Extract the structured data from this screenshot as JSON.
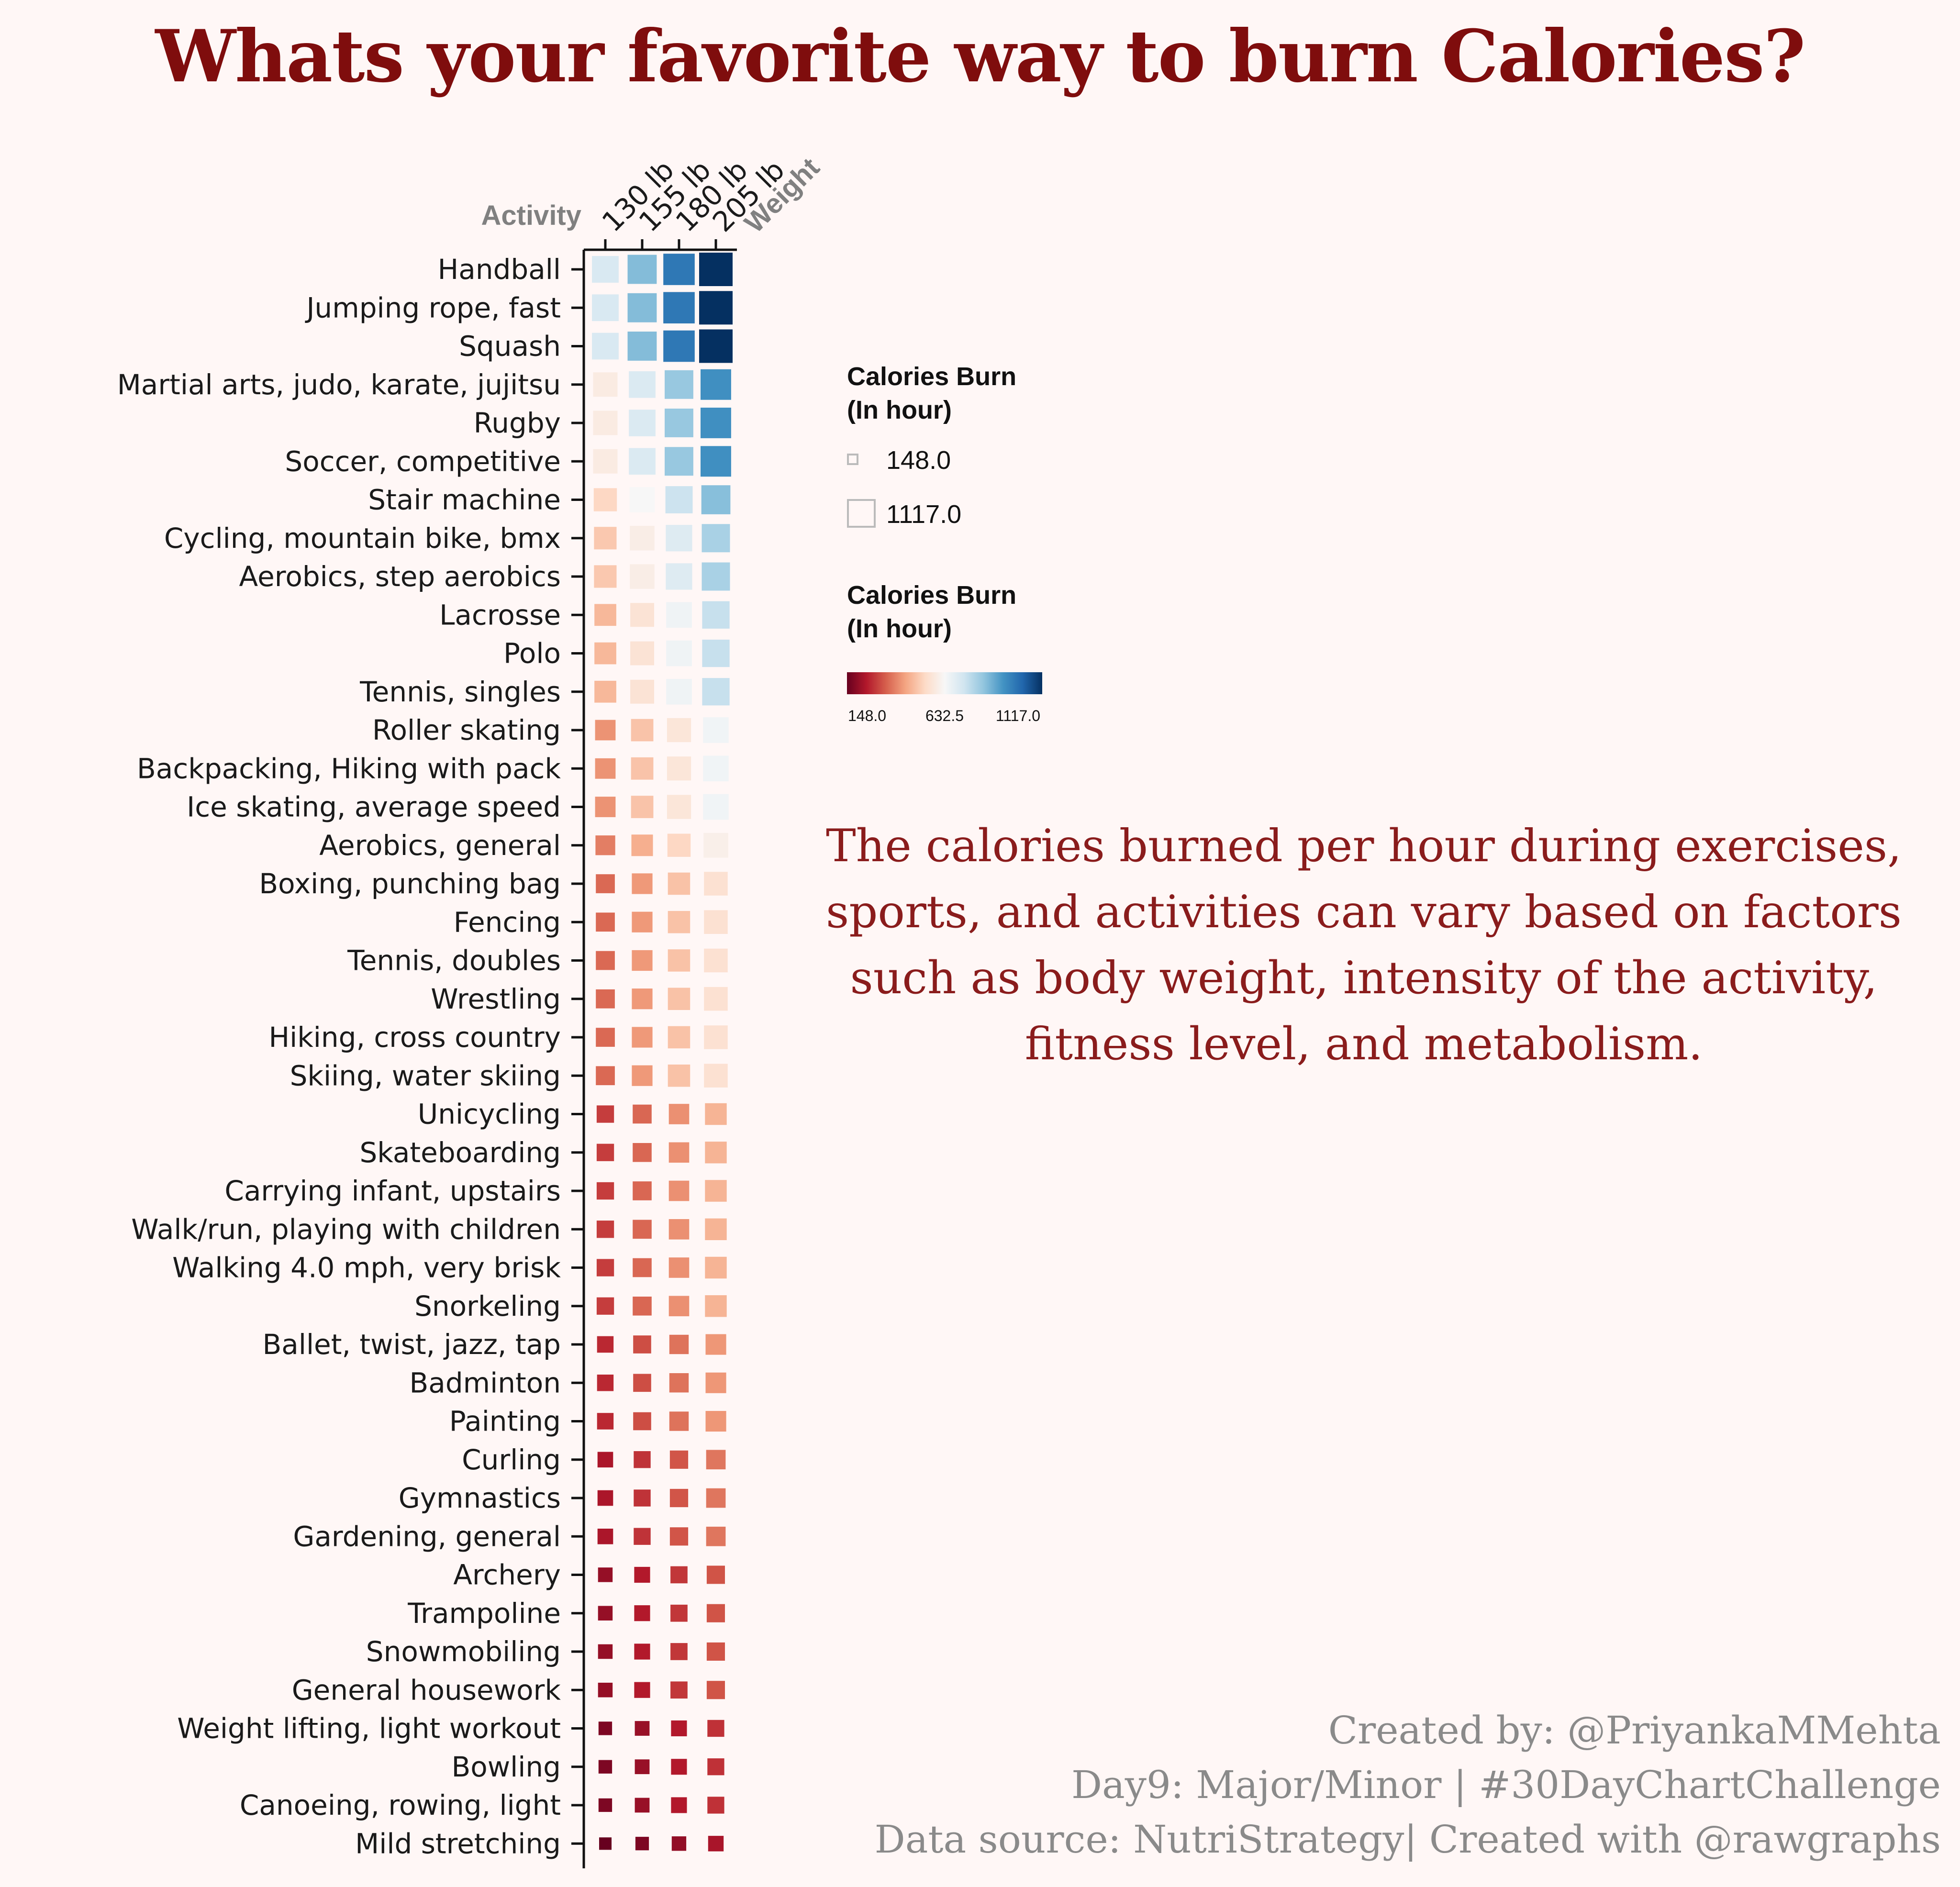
{
  "title": "Whats your favorite way to burn Calories?",
  "description": "The calories burned per hour during exercises, sports, and activities can vary based on factors such as body weight,  intensity of the activity, fitness level, and metabolism.",
  "credits": [
    "Created by: @PriyankaMMehta",
    "Day9: Major/Minor | #30DayChartChallenge",
    "Data source: NutriStrategy| Created with @rawgraphs"
  ],
  "colors": {
    "title": "#7f0d0d",
    "background": "#fff7f6",
    "scale_low": "#67001f",
    "scale_mid": "#f7f7f7",
    "scale_high": "#053061"
  },
  "chart_data": {
    "type": "heatmap",
    "xlabel": "Weight",
    "ylabel": "Activity",
    "columns": [
      "130 lb",
      "155 lb",
      "180 lb",
      "205 lb"
    ],
    "size_legend": {
      "title_lines": [
        "Calories Burn",
        "(In hour)"
      ],
      "min": "148.0",
      "max": "1117.0"
    },
    "color_legend": {
      "title_lines": [
        "Calories Burn",
        "(In hour)"
      ],
      "ticks": [
        "148.0",
        "632.5",
        "1117.0"
      ],
      "domain": [
        148,
        632.5,
        1117
      ]
    },
    "rows": [
      {
        "activity": "Handball",
        "values": [
          708,
          844,
          981,
          1117
        ]
      },
      {
        "activity": "Jumping rope, fast",
        "values": [
          708,
          844,
          981,
          1117
        ]
      },
      {
        "activity": "Squash",
        "values": [
          708,
          844,
          981,
          1117
        ]
      },
      {
        "activity": "Martial arts, judo, karate, jujitsu",
        "values": [
          590,
          704,
          817,
          931
        ]
      },
      {
        "activity": "Rugby",
        "values": [
          590,
          704,
          817,
          931
        ]
      },
      {
        "activity": "Soccer, competitive",
        "values": [
          590,
          704,
          817,
          931
        ]
      },
      {
        "activity": "Stair machine",
        "values": [
          531,
          633,
          735,
          838
        ]
      },
      {
        "activity": "Cycling, mountain bike, bmx",
        "values": [
          502,
          598,
          695,
          791
        ]
      },
      {
        "activity": "Aerobics, step aerobics",
        "values": [
          502,
          598,
          695,
          791
        ]
      },
      {
        "activity": "Lacrosse",
        "values": [
          472,
          563,
          654,
          745
        ]
      },
      {
        "activity": "Polo",
        "values": [
          472,
          563,
          654,
          745
        ]
      },
      {
        "activity": "Tennis, singles",
        "values": [
          472,
          563,
          654,
          745
        ]
      },
      {
        "activity": "Roller skating",
        "values": [
          413,
          493,
          572,
          651
        ]
      },
      {
        "activity": "Backpacking, Hiking with pack",
        "values": [
          413,
          493,
          572,
          651
        ]
      },
      {
        "activity": "Ice skating, average speed",
        "values": [
          413,
          493,
          572,
          651
        ]
      },
      {
        "activity": "Aerobics, general",
        "values": [
          384,
          457,
          531,
          605
        ]
      },
      {
        "activity": "Boxing, punching bag",
        "values": [
          354,
          422,
          490,
          558
        ]
      },
      {
        "activity": "Fencing",
        "values": [
          354,
          422,
          490,
          558
        ]
      },
      {
        "activity": "Tennis, doubles",
        "values": [
          354,
          422,
          490,
          558
        ]
      },
      {
        "activity": "Wrestling",
        "values": [
          354,
          422,
          490,
          558
        ]
      },
      {
        "activity": "Hiking, cross country",
        "values": [
          354,
          422,
          490,
          558
        ]
      },
      {
        "activity": "Skiing, water skiing",
        "values": [
          354,
          422,
          490,
          558
        ]
      },
      {
        "activity": "Unicycling",
        "values": [
          295,
          352,
          409,
          465
        ]
      },
      {
        "activity": "Skateboarding",
        "values": [
          295,
          352,
          409,
          465
        ]
      },
      {
        "activity": "Carrying infant, upstairs",
        "values": [
          295,
          352,
          409,
          465
        ]
      },
      {
        "activity": "Walk/run, playing with children",
        "values": [
          295,
          352,
          409,
          465
        ]
      },
      {
        "activity": "Walking 4.0 mph, very brisk",
        "values": [
          295,
          352,
          409,
          465
        ]
      },
      {
        "activity": "Snorkeling",
        "values": [
          295,
          352,
          409,
          465
        ]
      },
      {
        "activity": "Ballet, twist, jazz, tap",
        "values": [
          266,
          317,
          368,
          419
        ]
      },
      {
        "activity": "Badminton",
        "values": [
          266,
          317,
          368,
          419
        ]
      },
      {
        "activity": "Painting",
        "values": [
          266,
          317,
          368,
          419
        ]
      },
      {
        "activity": "Curling",
        "values": [
          236,
          281,
          327,
          372
        ]
      },
      {
        "activity": "Gymnastics",
        "values": [
          236,
          281,
          327,
          372
        ]
      },
      {
        "activity": "Gardening, general",
        "values": [
          236,
          281,
          327,
          372
        ]
      },
      {
        "activity": "Archery",
        "values": [
          207,
          246,
          286,
          326
        ]
      },
      {
        "activity": "Trampoline",
        "values": [
          207,
          246,
          286,
          326
        ]
      },
      {
        "activity": "Snowmobiling",
        "values": [
          207,
          246,
          286,
          326
        ]
      },
      {
        "activity": "General housework",
        "values": [
          207,
          246,
          286,
          326
        ]
      },
      {
        "activity": "Weight lifting, light workout",
        "values": [
          177,
          211,
          245,
          279
        ]
      },
      {
        "activity": "Bowling",
        "values": [
          177,
          211,
          245,
          279
        ]
      },
      {
        "activity": "Canoeing, rowing, light",
        "values": [
          177,
          211,
          245,
          279
        ]
      },
      {
        "activity": "Mild stretching",
        "values": [
          148,
          176,
          204,
          233
        ]
      }
    ]
  }
}
